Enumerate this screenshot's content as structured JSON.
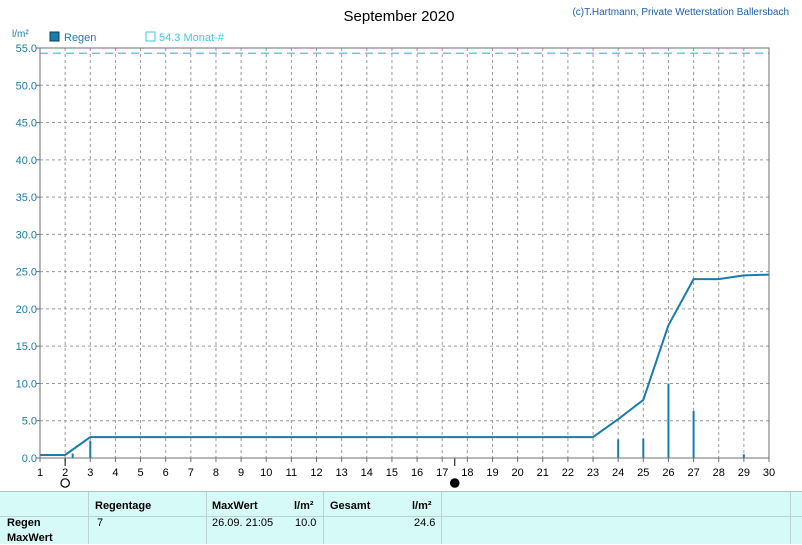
{
  "header": {
    "title": "September 2020",
    "credit": "(c)T.Hartmann, Private Wetterstation Ballersbach"
  },
  "legend": {
    "rain_label": "Regen",
    "avg_label": "54.3 Monat-#"
  },
  "colors": {
    "rain": "#1a7ca8",
    "avg": "#3fc9e0",
    "grid": "#9a9a9a",
    "axis_text": "#1a7ca8",
    "table_bg": "#d6fbf6"
  },
  "chart_data": {
    "type": "bar+line",
    "title": "September 2020",
    "ylabel": "l/m²",
    "ylim": [
      0,
      55
    ],
    "xlim": [
      1,
      30
    ],
    "yticks": [
      "0.0",
      "5.0",
      "10.0",
      "15.0",
      "20.0",
      "25.0",
      "30.0",
      "35.0",
      "40.0",
      "45.0",
      "50.0",
      "55.0"
    ],
    "xticks": [
      "1",
      "2",
      "3",
      "4",
      "5",
      "6",
      "7",
      "8",
      "9",
      "10",
      "11",
      "12",
      "13",
      "14",
      "15",
      "16",
      "17",
      "18",
      "19",
      "20",
      "21",
      "22",
      "23",
      "24",
      "25",
      "26",
      "27",
      "28",
      "29",
      "30"
    ],
    "grid": true,
    "legend_position": "top-left",
    "daily_rain": [
      {
        "x": 2.3,
        "y": 0.6
      },
      {
        "x": 3.0,
        "y": 2.3
      },
      {
        "x": 24.0,
        "y": 2.5
      },
      {
        "x": 25.0,
        "y": 2.6
      },
      {
        "x": 26.0,
        "y": 10.0
      },
      {
        "x": 27.0,
        "y": 6.3
      },
      {
        "x": 29.0,
        "y": 0.5
      }
    ],
    "cumulative": [
      {
        "x": 1.0,
        "y": 0.4
      },
      {
        "x": 2.0,
        "y": 0.4
      },
      {
        "x": 3.0,
        "y": 2.8
      },
      {
        "x": 23.0,
        "y": 2.8
      },
      {
        "x": 24.0,
        "y": 5.2
      },
      {
        "x": 25.0,
        "y": 7.8
      },
      {
        "x": 26.0,
        "y": 17.8
      },
      {
        "x": 27.0,
        "y": 24.0
      },
      {
        "x": 28.0,
        "y": 24.0
      },
      {
        "x": 29.0,
        "y": 24.5
      },
      {
        "x": 30.0,
        "y": 24.6
      }
    ],
    "average": 54.3,
    "moon_phases": [
      {
        "x": 2.0,
        "phase": "full"
      },
      {
        "x": 17.5,
        "phase": "new"
      }
    ]
  },
  "table": {
    "headers": {
      "regentage": "Regentage",
      "maxwert": "MaxWert",
      "unit1": "l/m²",
      "gesamt": "Gesamt",
      "unit2": "l/m²"
    },
    "rows": {
      "regen_label": "Regen",
      "maxwert_label": "MaxWert"
    },
    "values": {
      "regentage": "7",
      "max_date": "26.09.  21:05",
      "max_value": "10.0",
      "total": "24.6"
    }
  }
}
